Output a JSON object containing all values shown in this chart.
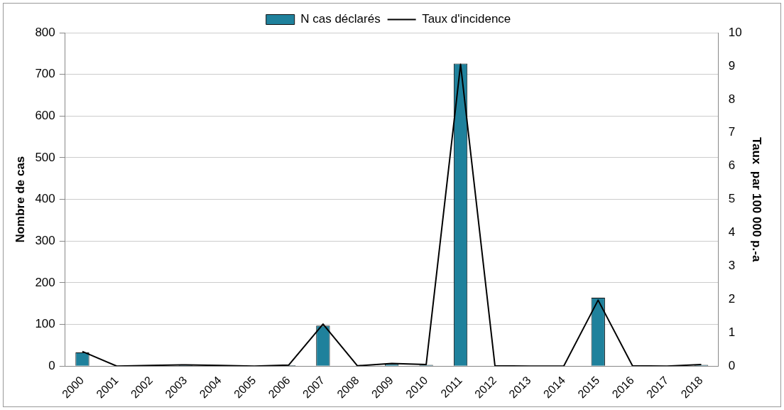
{
  "chart_data": {
    "type": "bar",
    "categories": [
      "2000",
      "2001",
      "2002",
      "2003",
      "2004",
      "2005",
      "2006",
      "2007",
      "2008",
      "2009",
      "2010",
      "2011",
      "2012",
      "2013",
      "2014",
      "2015",
      "2016",
      "2017",
      "2018"
    ],
    "series": [
      {
        "name": "N cas déclarés",
        "color": "#1f819c",
        "values": [
          33,
          0,
          1,
          3,
          1,
          0,
          2,
          97,
          1,
          5,
          3,
          726,
          1,
          0,
          0,
          164,
          1,
          0,
          3
        ]
      },
      {
        "name": "Taux d'incidence",
        "type": "line",
        "axis": "y2",
        "color": "#000000",
        "values": [
          0.44,
          0,
          0.02,
          0.04,
          0.02,
          0,
          0.03,
          1.26,
          0.01,
          0.08,
          0.05,
          9.05,
          0.01,
          0,
          0,
          1.98,
          0.01,
          0,
          0.05
        ]
      }
    ],
    "ylabel": "Nombre de cas",
    "y2label": "Taux  par 100 000 p.-a",
    "ylim": [
      0,
      800
    ],
    "yticks": [
      0,
      100,
      200,
      300,
      400,
      500,
      600,
      700,
      800
    ],
    "y2lim": [
      0,
      10
    ],
    "y2ticks": [
      0,
      1,
      2,
      3,
      4,
      5,
      6,
      7,
      8,
      9,
      10
    ],
    "grid": "y",
    "legend": "top",
    "marker": "none",
    "line_style": "solid"
  }
}
